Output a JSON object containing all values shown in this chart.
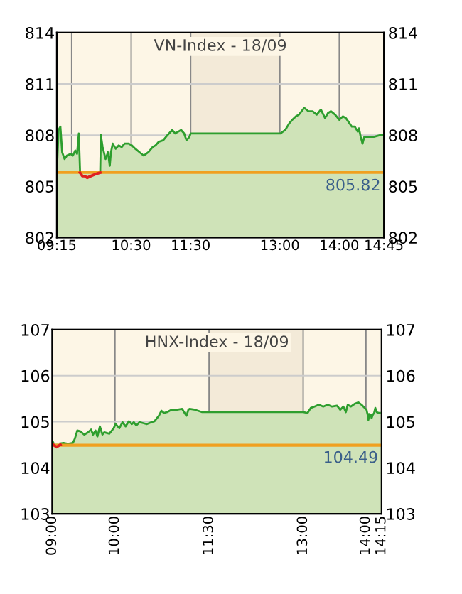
{
  "chart_data": [
    {
      "type": "area",
      "title": "VN-Index - 18/09",
      "xlim": [
        9.25,
        14.75
      ],
      "xticks": [
        {
          "value": 9.25,
          "label": "09:15"
        },
        {
          "value": 9.5,
          "label": null
        },
        {
          "value": 10.5,
          "label": "10:30"
        },
        {
          "value": 11.5,
          "label": "11:30"
        },
        {
          "value": 13,
          "label": "13:00"
        },
        {
          "value": 14,
          "label": "14:00"
        },
        {
          "value": 14.75,
          "label": "14:45"
        }
      ],
      "ylim": [
        802,
        814
      ],
      "yticks": [
        802,
        805,
        808,
        811,
        814
      ],
      "y2lim": [
        802,
        814
      ],
      "y2ticks": [
        802,
        805,
        808,
        811,
        814
      ],
      "grid": true,
      "series": [
        {
          "color": "#2e9e2e",
          "x": [
            9.25,
            9.28,
            9.31,
            9.34,
            9.38,
            9.42,
            9.48,
            9.52,
            9.56,
            9.59,
            9.62,
            9.64,
            9.65,
            9.98,
            9.99,
            10.02,
            10.07,
            10.11,
            10.14,
            10.16,
            10.19,
            10.24,
            10.29,
            10.34,
            10.39,
            10.46,
            10.51,
            10.57,
            10.64,
            10.71,
            10.79,
            10.86,
            10.91,
            10.96,
            11.04,
            11.11,
            11.19,
            11.24,
            11.29,
            11.34,
            11.39,
            11.43,
            11.48,
            11.5,
            13.01,
            13.09,
            13.16,
            13.21,
            13.27,
            13.32,
            13.41,
            13.48,
            13.55,
            13.62,
            13.69,
            13.76,
            13.81,
            13.86,
            13.93,
            14.0,
            14.06,
            14.11,
            14.17,
            14.21,
            14.26,
            14.31,
            14.33,
            14.36,
            14.39,
            14.42,
            14.58,
            14.69,
            14.75
          ],
          "values": [
            805.9,
            808.3,
            808.5,
            807.0,
            806.6,
            806.8,
            806.9,
            806.8,
            807.1,
            806.9,
            808.1,
            805.9,
            null,
            805.9,
            808.0,
            807.3,
            806.6,
            807.0,
            806.2,
            807.0,
            807.5,
            807.2,
            807.4,
            807.3,
            807.5,
            807.5,
            807.4,
            807.2,
            807.0,
            806.8,
            807.0,
            807.3,
            807.4,
            807.6,
            807.7,
            808.0,
            808.3,
            808.1,
            808.2,
            808.3,
            808.1,
            807.7,
            807.9,
            808.1,
            808.1,
            808.3,
            808.7,
            808.9,
            809.1,
            809.2,
            809.6,
            809.4,
            809.4,
            809.2,
            809.5,
            809.0,
            809.3,
            809.4,
            809.2,
            808.9,
            809.1,
            809.0,
            808.7,
            808.5,
            808.5,
            808.2,
            808.4,
            807.9,
            807.5,
            807.9,
            807.9,
            808.0,
            808.0
          ]
        },
        {
          "type": "line",
          "color": "#e02020",
          "x": [
            9.64,
            9.68,
            9.72,
            9.76,
            9.82,
            9.89,
            9.98
          ],
          "values": [
            805.8,
            805.6,
            805.6,
            805.5,
            805.6,
            805.7,
            805.8
          ]
        }
      ],
      "ref_lines": [
        {
          "axis": "y",
          "value": 805.82,
          "label": "805.82",
          "color": "#f0a020"
        }
      ],
      "bands": [
        {
          "axis": "x",
          "from": 11.5,
          "to": 13,
          "label": null,
          "color": "#f3ead8"
        }
      ]
    },
    {
      "type": "area",
      "title": "HNX-Index - 18/09",
      "xlim": [
        9,
        14.25
      ],
      "xticks": [
        {
          "value": 9,
          "label": "09:00"
        },
        {
          "value": 10,
          "label": "10:00"
        },
        {
          "value": 11.5,
          "label": "11:30"
        },
        {
          "value": 13,
          "label": "13:00"
        },
        {
          "value": 14,
          "label": "14:00"
        },
        {
          "value": 14.25,
          "label": "14:15"
        }
      ],
      "ylim": [
        103,
        107
      ],
      "yticks": [
        103,
        104,
        105,
        106,
        107
      ],
      "y2lim": [
        103,
        107
      ],
      "y2ticks": [
        103,
        104,
        105,
        106,
        107
      ],
      "grid": true,
      "series": [
        {
          "color": "#2e9e2e",
          "x": [
            9.0,
            9.02,
            9.03,
            9.13,
            9.18,
            9.25,
            9.33,
            9.36,
            9.4,
            9.45,
            9.51,
            9.57,
            9.62,
            9.65,
            9.69,
            9.72,
            9.76,
            9.8,
            9.83,
            9.91,
            9.98,
            10.01,
            10.07,
            10.12,
            10.17,
            10.22,
            10.27,
            10.3,
            10.34,
            10.39,
            10.45,
            10.51,
            10.58,
            10.63,
            10.7,
            10.74,
            10.78,
            10.83,
            10.9,
            10.99,
            11.07,
            11.14,
            11.17,
            11.19,
            11.28,
            11.39,
            11.5,
            13.0,
            13.07,
            13.12,
            13.18,
            13.25,
            13.32,
            13.39,
            13.46,
            13.54,
            13.59,
            13.64,
            13.68,
            13.71,
            13.76,
            13.82,
            13.88,
            13.93,
            13.98,
            14.01,
            14.03,
            14.04,
            14.05,
            14.06,
            14.08,
            14.09,
            14.11,
            14.13,
            14.15,
            14.17,
            14.21,
            14.25
          ],
          "values": [
            104.59,
            104.54,
            null,
            104.53,
            104.54,
            104.52,
            104.54,
            104.63,
            104.81,
            104.79,
            104.72,
            104.77,
            104.83,
            104.72,
            104.81,
            104.68,
            104.9,
            104.72,
            104.77,
            104.74,
            104.86,
            104.95,
            104.86,
            104.99,
            104.9,
            105.01,
            104.95,
            104.99,
            104.92,
            104.99,
            104.97,
            104.95,
            104.99,
            105.01,
            105.13,
            105.24,
            105.19,
            105.21,
            105.26,
            105.26,
            105.28,
            105.13,
            105.26,
            105.28,
            105.26,
            105.21,
            105.21,
            105.21,
            105.19,
            105.3,
            105.33,
            105.37,
            105.33,
            105.37,
            105.33,
            105.35,
            105.26,
            105.33,
            105.21,
            105.37,
            105.33,
            105.39,
            105.42,
            105.37,
            105.3,
            105.26,
            105.14,
            105.04,
            105.17,
            105.13,
            105.15,
            105.08,
            105.15,
            105.19,
            105.3,
            105.21,
            105.19,
            105.19
          ]
        },
        {
          "type": "line",
          "color": "#e02020",
          "x": [
            9.02,
            9.07,
            9.13
          ],
          "values": [
            104.5,
            104.45,
            104.5
          ]
        }
      ],
      "ref_lines": [
        {
          "axis": "y",
          "value": 104.49,
          "label": "104.49",
          "color": "#f0a020"
        }
      ],
      "bands": [
        {
          "axis": "x",
          "from": 11.5,
          "to": 13,
          "label": null,
          "color": "#f3ead8"
        }
      ]
    }
  ]
}
